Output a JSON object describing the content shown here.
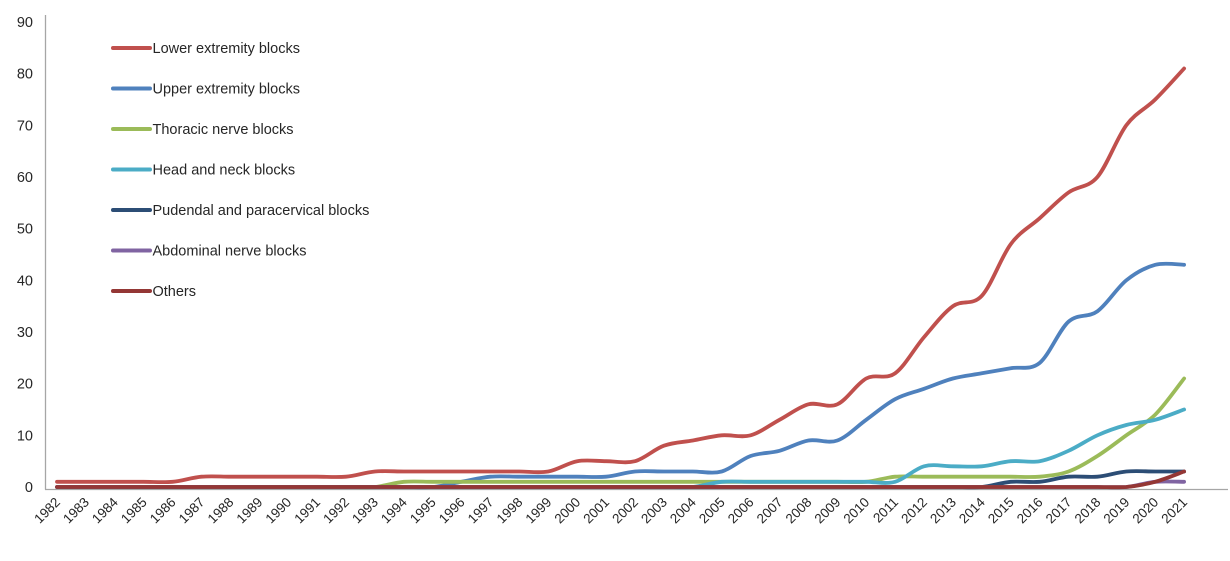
{
  "chart_data": {
    "type": "line",
    "title": "",
    "xlabel": "",
    "ylabel": "",
    "ylim": [
      0,
      90
    ],
    "y_ticks": [
      0,
      10,
      20,
      30,
      40,
      50,
      60,
      70,
      80,
      90
    ],
    "grid": false,
    "legend_position": "top-left",
    "axis_color": "#A6A6A6",
    "text_color": "#262626",
    "categories": [
      "1982",
      "1983",
      "1984",
      "1985",
      "1986",
      "1987",
      "1988",
      "1989",
      "1990",
      "1991",
      "1992",
      "1993",
      "1994",
      "1995",
      "1996",
      "1997",
      "1998",
      "1999",
      "2000",
      "2001",
      "2002",
      "2003",
      "2004",
      "2005",
      "2006",
      "2007",
      "2008",
      "2009",
      "2010",
      "2011",
      "2012",
      "2013",
      "2014",
      "2015",
      "2016",
      "2017",
      "2018",
      "2019",
      "2020",
      "2021"
    ],
    "series": [
      {
        "name": "Lower extremity blocks",
        "color": "#C0504D",
        "values": [
          1,
          1,
          1,
          1,
          1,
          2,
          2,
          2,
          2,
          2,
          2,
          3,
          3,
          3,
          3,
          3,
          3,
          3,
          5,
          5,
          5,
          8,
          9,
          10,
          10,
          13,
          16,
          16,
          21,
          22,
          29,
          35,
          37,
          47,
          52,
          57,
          60,
          70,
          75,
          81
        ]
      },
      {
        "name": "Upper extremity blocks",
        "color": "#4F81BD",
        "values": [
          0,
          0,
          0,
          0,
          0,
          0,
          0,
          0,
          0,
          0,
          0,
          0,
          0,
          0,
          1,
          2,
          2,
          2,
          2,
          2,
          3,
          3,
          3,
          3,
          6,
          7,
          9,
          9,
          13,
          17,
          19,
          21,
          22,
          23,
          24,
          32,
          34,
          40,
          43,
          43
        ]
      },
      {
        "name": "Thoracic nerve blocks",
        "color": "#9BBB59",
        "values": [
          0,
          0,
          0,
          0,
          0,
          0,
          0,
          0,
          0,
          0,
          0,
          0,
          1,
          1,
          1,
          1,
          1,
          1,
          1,
          1,
          1,
          1,
          1,
          1,
          1,
          1,
          1,
          1,
          1,
          2,
          2,
          2,
          2,
          2,
          2,
          3,
          6,
          10,
          14,
          21
        ]
      },
      {
        "name": "Head and neck blocks",
        "color": "#4BACC6",
        "values": [
          0,
          0,
          0,
          0,
          0,
          0,
          0,
          0,
          0,
          0,
          0,
          0,
          0,
          0,
          0,
          0,
          0,
          0,
          0,
          0,
          0,
          0,
          0,
          1,
          1,
          1,
          1,
          1,
          1,
          1,
          4,
          4,
          4,
          5,
          5,
          7,
          10,
          12,
          13,
          15
        ]
      },
      {
        "name": "Pudendal and paracervical blocks",
        "color": "#2C4D75",
        "values": [
          0,
          0,
          0,
          0,
          0,
          0,
          0,
          0,
          0,
          0,
          0,
          0,
          0,
          0,
          0,
          0,
          0,
          0,
          0,
          0,
          0,
          0,
          0,
          0,
          0,
          0,
          0,
          0,
          0,
          0,
          0,
          0,
          0,
          1,
          1,
          2,
          2,
          3,
          3,
          3
        ]
      },
      {
        "name": "Abdominal nerve blocks",
        "color": "#8064A2",
        "values": [
          0,
          0,
          0,
          0,
          0,
          0,
          0,
          0,
          0,
          0,
          0,
          0,
          0,
          0,
          0,
          0,
          0,
          0,
          0,
          0,
          0,
          0,
          0,
          0,
          0,
          0,
          0,
          0,
          0,
          0,
          0,
          0,
          0,
          0,
          0,
          0,
          0,
          0,
          1,
          1
        ]
      },
      {
        "name": "Others",
        "color": "#943735",
        "values": [
          0,
          0,
          0,
          0,
          0,
          0,
          0,
          0,
          0,
          0,
          0,
          0,
          0,
          0,
          0,
          0,
          0,
          0,
          0,
          0,
          0,
          0,
          0,
          0,
          0,
          0,
          0,
          0,
          0,
          0,
          0,
          0,
          0,
          0,
          0,
          0,
          0,
          0,
          1,
          3
        ]
      }
    ]
  }
}
